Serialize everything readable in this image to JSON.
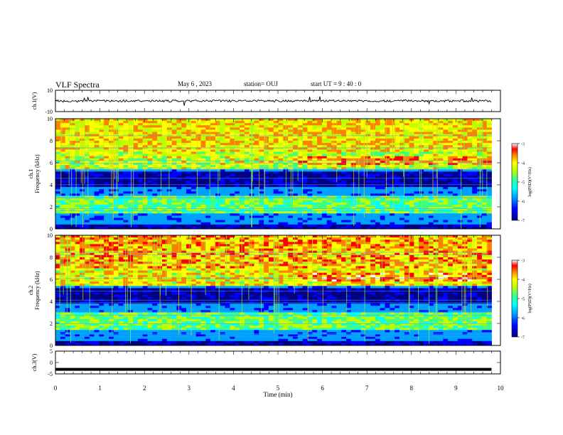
{
  "header": {
    "title": "VLF Spectra",
    "date": "May 6  , 2023",
    "station": "station= OUJ",
    "start": "start  UT  =   9 : 40 : 0"
  },
  "chart_data": [
    {
      "type": "line",
      "panel": "ch1-waveform",
      "ylabel": "ch.1(V)",
      "ylim": [
        -10,
        10
      ],
      "yticks": [
        "10",
        "-10"
      ],
      "xlim": [
        0,
        10
      ],
      "baseline_value": 0,
      "color": "#000000"
    },
    {
      "type": "heatmap",
      "panel": "ch1-spectrogram",
      "ylabel": "ch.1\nFrequency  (kHz)",
      "ylim": [
        0,
        10
      ],
      "yticks": [
        "0",
        "2",
        "4",
        "6",
        "8",
        "10"
      ],
      "xlim": [
        0,
        10
      ],
      "colorbar": {
        "label": "log(PSD)(V²/Hz)",
        "range": [
          -7,
          -3
        ],
        "ticks": [
          "-3",
          "-4",
          "-5",
          "-6",
          "-7"
        ]
      },
      "features": {
        "emission_band_khz": [
          1.5,
          3.0
        ],
        "upper_band_khz": [
          5.5,
          10
        ],
        "quiet_band_khz": [
          3.8,
          5.2
        ],
        "data_end_min": 9.8
      }
    },
    {
      "type": "heatmap",
      "panel": "ch2-spectrogram",
      "ylabel": "ch.2\nFrequency  (kHz)",
      "ylim": [
        0,
        10
      ],
      "yticks": [
        "0",
        "2",
        "4",
        "6",
        "8",
        "10"
      ],
      "xlim": [
        0,
        10
      ],
      "colorbar": {
        "label": "log(PSD)(V²/Hz)",
        "range": [
          -7,
          -3
        ],
        "ticks": [
          "-3",
          "-4",
          "-5",
          "-6",
          "-7"
        ]
      },
      "features": {
        "emission_band_khz": [
          1.5,
          3.0
        ],
        "upper_band_khz": [
          5.5,
          10
        ],
        "quiet_band_khz": [
          3.8,
          5.2
        ],
        "data_end_min": 9.8
      }
    },
    {
      "type": "line",
      "panel": "ch3-waveform",
      "ylabel": "ch.3(V)",
      "ylim": [
        -5,
        5
      ],
      "yticks": [
        "5",
        "0",
        "-5"
      ],
      "xlim": [
        0,
        10
      ],
      "baseline_value": -3,
      "color": "#000000"
    }
  ],
  "x_axis": {
    "label": "Time  (min)",
    "ticks": [
      "0",
      "1",
      "2",
      "3",
      "4",
      "5",
      "6",
      "7",
      "8",
      "9",
      "10"
    ]
  },
  "colorscale": [
    "#000080",
    "#0000ff",
    "#00a0ff",
    "#00ffff",
    "#40ff80",
    "#c0ff00",
    "#ffff00",
    "#ff8000",
    "#ff0000",
    "#ffffff"
  ]
}
